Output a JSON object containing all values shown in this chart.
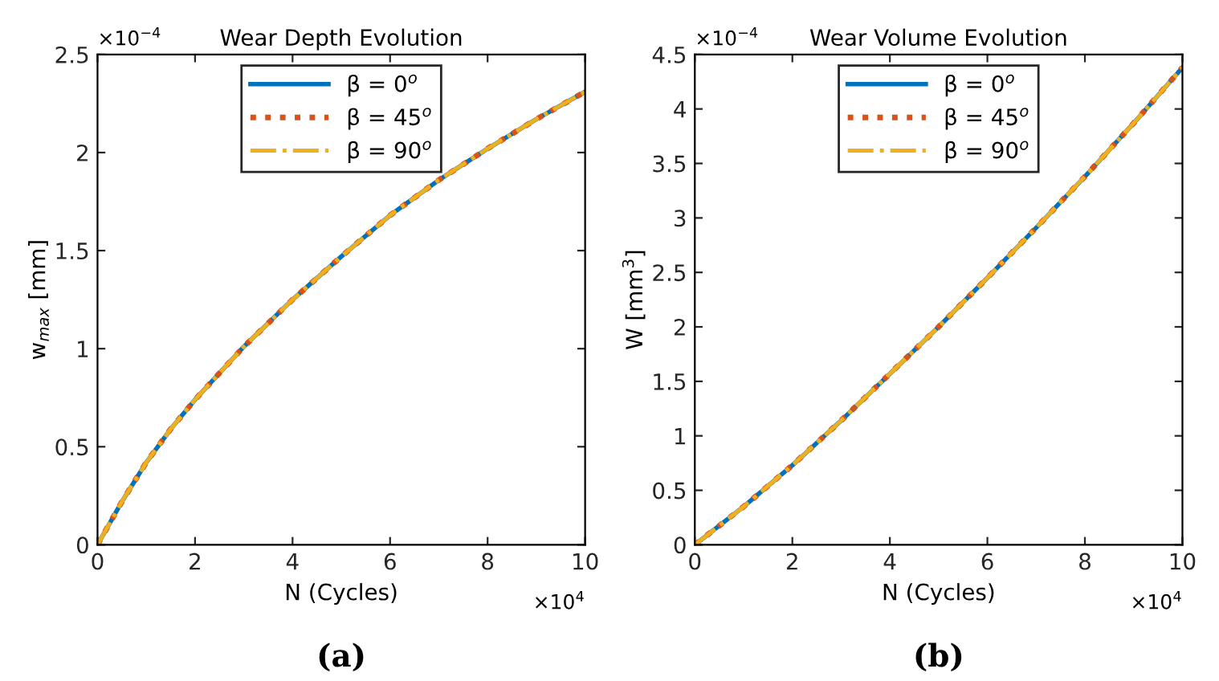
{
  "chart_data": [
    {
      "type": "line",
      "title": "Wear Depth Evolution",
      "xlabel": "N (Cycles)",
      "ylabel": "w$_{max}$ [mm]",
      "annotations": [
        "×10$^{−4}$",
        "×10$^{4}$",
        "(a)"
      ],
      "x": [
        0,
        0.5,
        1,
        1.5,
        2,
        3,
        4,
        5,
        6,
        7,
        8,
        9,
        10
      ],
      "xlim": [
        0,
        10
      ],
      "xticks": [
        0,
        2,
        4,
        6,
        8,
        10
      ],
      "ylim": [
        0,
        2.5
      ],
      "yticks": [
        0,
        0.5,
        1,
        1.5,
        2,
        2.5
      ],
      "legend": "top",
      "series": [
        {
          "name": "β = 0$^{o}$",
          "color": "#0072bd",
          "line_style": "solid",
          "values": [
            0,
            0.22,
            0.42,
            0.59,
            0.74,
            1.01,
            1.25,
            1.47,
            1.68,
            1.86,
            2.02,
            2.17,
            2.31
          ]
        },
        {
          "name": "β = 45$^{o}$",
          "color": "#d95319",
          "line_style": "dotted",
          "values": [
            0,
            0.22,
            0.42,
            0.59,
            0.74,
            1.01,
            1.25,
            1.47,
            1.68,
            1.86,
            2.02,
            2.17,
            2.31
          ]
        },
        {
          "name": "β = 90$^{o}$",
          "color": "#edb120",
          "line_style": "dashed",
          "values": [
            0,
            0.22,
            0.42,
            0.59,
            0.74,
            1.01,
            1.25,
            1.47,
            1.68,
            1.86,
            2.02,
            2.17,
            2.31
          ]
        }
      ]
    },
    {
      "type": "line",
      "title": "Wear Volume Evolution",
      "xlabel": "N (Cycles)",
      "ylabel": "W [mm$^{3}$]",
      "annotations": [
        "×10$^{−4}$",
        "×10$^{4}$",
        "(b)"
      ],
      "x": [
        0,
        1,
        2,
        3,
        4,
        5,
        6,
        7,
        8,
        9,
        10
      ],
      "xlim": [
        0,
        10
      ],
      "xticks": [
        0,
        2,
        4,
        6,
        8,
        10
      ],
      "ylim": [
        0,
        4.5
      ],
      "yticks": [
        0,
        0.5,
        1,
        1.5,
        2,
        2.5,
        3,
        3.5,
        4,
        4.5
      ],
      "legend": "top",
      "series": [
        {
          "name": "β = 0$^{o}$",
          "color": "#0072bd",
          "line_style": "solid",
          "values": [
            0,
            0.35,
            0.73,
            1.14,
            1.57,
            2.0,
            2.45,
            2.91,
            3.38,
            3.87,
            4.38
          ]
        },
        {
          "name": "β = 45$^{o}$",
          "color": "#d95319",
          "line_style": "dotted",
          "values": [
            0,
            0.35,
            0.73,
            1.14,
            1.57,
            2.0,
            2.45,
            2.91,
            3.38,
            3.87,
            4.38
          ]
        },
        {
          "name": "β = 90$^{o}$",
          "color": "#edb120",
          "line_style": "dashed",
          "values": [
            0,
            0.35,
            0.73,
            1.14,
            1.57,
            2.0,
            2.45,
            2.91,
            3.38,
            3.87,
            4.38
          ]
        }
      ]
    }
  ]
}
